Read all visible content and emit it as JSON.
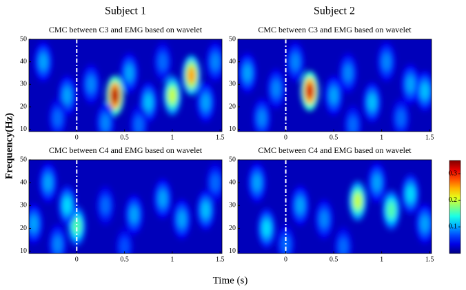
{
  "figure": {
    "column_titles": [
      "Subject 1",
      "Subject 2"
    ],
    "ylabel": "Frequency(Hz)",
    "xlabel": "Time (s)",
    "colorbar": {
      "clim": [
        0,
        0.35
      ],
      "ticks": [
        0.1,
        0.2,
        0.3
      ]
    }
  },
  "chart_data": [
    {
      "type": "heatmap",
      "title": "CMC between C3 and EMG based on wavelet",
      "xlim": [
        -0.5,
        1.52
      ],
      "ylim": [
        9,
        50
      ],
      "xticks": [
        0,
        0.5,
        1,
        1.5
      ],
      "yticks": [
        10,
        20,
        30,
        40,
        50
      ],
      "vline": 0,
      "x": [
        0.4,
        1.2,
        1.0,
        -0.35,
        -0.1,
        0.15,
        0.55,
        0.75,
        0.9,
        1.35,
        -0.2,
        0.3,
        1.45,
        0.65
      ],
      "y": [
        25,
        34,
        25,
        40,
        25,
        30,
        35,
        22,
        40,
        22,
        15,
        13,
        40,
        12
      ],
      "values": [
        0.33,
        0.25,
        0.2,
        0.1,
        0.1,
        0.09,
        0.1,
        0.11,
        0.08,
        0.1,
        0.08,
        0.09,
        0.09,
        0.08
      ]
    },
    {
      "type": "heatmap",
      "title": "CMC between C3 and EMG based on wavelet",
      "xlim": [
        -0.5,
        1.52
      ],
      "ylim": [
        9,
        50
      ],
      "xticks": [
        0,
        0.5,
        1,
        1.5
      ],
      "yticks": [
        10,
        20,
        30,
        40,
        50
      ],
      "vline": 0,
      "x": [
        0.25,
        -0.4,
        -0.1,
        0.1,
        0.5,
        0.65,
        0.9,
        1.05,
        1.3,
        1.45,
        -0.25,
        0.7,
        1.2
      ],
      "y": [
        27,
        35,
        28,
        40,
        25,
        35,
        22,
        40,
        30,
        27,
        15,
        12,
        15
      ],
      "values": [
        0.32,
        0.1,
        0.09,
        0.09,
        0.1,
        0.09,
        0.11,
        0.09,
        0.1,
        0.11,
        0.09,
        0.08,
        0.08
      ]
    },
    {
      "type": "heatmap",
      "title": "CMC between C4 and EMG based on wavelet",
      "xlim": [
        -0.5,
        1.52
      ],
      "ylim": [
        9,
        50
      ],
      "xticks": [
        0,
        0.5,
        1,
        1.5
      ],
      "yticks": [
        10,
        20,
        30,
        40,
        50
      ],
      "vline": 0,
      "x": [
        0.0,
        -0.1,
        -0.3,
        -0.45,
        0.3,
        0.6,
        0.9,
        1.1,
        1.35,
        1.45,
        0.5,
        -0.2
      ],
      "y": [
        21,
        30,
        40,
        22,
        30,
        26,
        33,
        24,
        28,
        40,
        12,
        13
      ],
      "values": [
        0.16,
        0.12,
        0.1,
        0.1,
        0.08,
        0.1,
        0.1,
        0.1,
        0.11,
        0.08,
        0.07,
        0.09
      ]
    },
    {
      "type": "heatmap",
      "title": "CMC between C4 and EMG based on wavelet",
      "xlim": [
        -0.5,
        1.52
      ],
      "ylim": [
        9,
        50
      ],
      "xticks": [
        0,
        0.5,
        1,
        1.5
      ],
      "yticks": [
        10,
        20,
        30,
        40,
        50
      ],
      "vline": 0,
      "x": [
        0.75,
        1.1,
        0.15,
        -0.3,
        -0.2,
        0.4,
        0.95,
        1.3,
        1.45,
        0.0,
        0.6
      ],
      "y": [
        32,
        28,
        30,
        40,
        20,
        24,
        40,
        35,
        22,
        13,
        12
      ],
      "values": [
        0.2,
        0.16,
        0.1,
        0.1,
        0.12,
        0.09,
        0.1,
        0.12,
        0.1,
        0.08,
        0.08
      ]
    }
  ]
}
